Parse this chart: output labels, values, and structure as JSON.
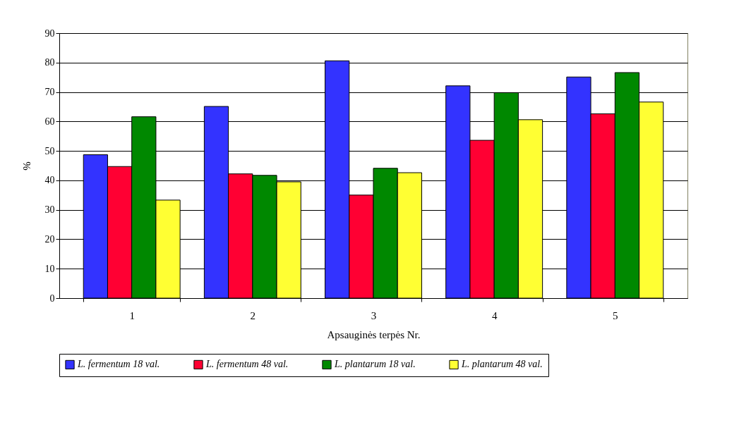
{
  "chart_data": {
    "type": "bar",
    "xlabel": "Apsauginės terpės Nr.",
    "ylabel": "%",
    "categories": [
      "1",
      "2",
      "3",
      "4",
      "5"
    ],
    "series": [
      {
        "name": "L. fermentum 18 val.",
        "color": "#3333ff",
        "values": [
          48.7,
          65.1,
          80.6,
          72.1,
          75.1
        ]
      },
      {
        "name": "L. fermentum 48 val.",
        "color": "#ff0033",
        "values": [
          44.7,
          42.2,
          35.0,
          53.6,
          62.6
        ]
      },
      {
        "name": "L. plantarum 18 val.",
        "color": "#008800",
        "values": [
          61.6,
          41.7,
          44.1,
          69.8,
          76.6
        ]
      },
      {
        "name": "L. plantarum 48 val.",
        "color": "#ffff33",
        "values": [
          33.3,
          39.5,
          42.6,
          60.6,
          66.6
        ]
      }
    ],
    "ylim": [
      0,
      90
    ],
    "yticks": [
      0,
      10,
      20,
      30,
      40,
      50,
      60,
      70,
      80,
      90
    ],
    "grid": "y",
    "legend": "bottom"
  }
}
